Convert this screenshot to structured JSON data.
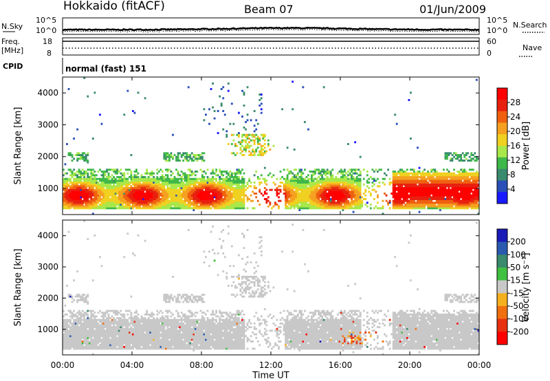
{
  "header": {
    "station": "Hokkaido (fitACF)",
    "beam": "Beam 07",
    "date": "01/Jun/2009"
  },
  "aux": {
    "nsky_label": "N.Sky",
    "nsky_ticks": [
      "10^5",
      "10^0"
    ],
    "nsearch_label": "N.Search",
    "freq_label": "Freq.",
    "freq_unit": "[MHz]",
    "freq_ticks": [
      "18",
      "8"
    ],
    "nave_label": "Nave",
    "nave_ticks": [
      "60",
      "0"
    ],
    "cpid_label": "CPID",
    "cpid_value": "normal (fast) 151"
  },
  "chart_data": [
    {
      "type": "heatmap",
      "panel": "power",
      "ylabel": "Slant Range [km]",
      "yticks": [
        1000,
        2000,
        3000,
        4000
      ],
      "ylim": [
        180,
        4500
      ],
      "xlim": [
        0,
        24
      ],
      "colorbar": {
        "label": "Power [dB]",
        "ticks": [
          4,
          8,
          12,
          16,
          20,
          24,
          28
        ],
        "colors": [
          "#1a1aff",
          "#2a4fb8",
          "#3a8a6e",
          "#3fb84a",
          "#a8e84a",
          "#f0d020",
          "#f5a020",
          "#f06010",
          "#e82010",
          "#ff0000"
        ]
      }
    },
    {
      "type": "heatmap",
      "panel": "velocity",
      "ylabel": "Slant Range [km]",
      "yticks": [
        1000,
        2000,
        3000,
        4000
      ],
      "ylim": [
        180,
        4500
      ],
      "xlim": [
        0,
        24
      ],
      "xlabel": "Time UT",
      "xticks": [
        "00:00",
        "04:00",
        "08:00",
        "12:00",
        "16:00",
        "20:00",
        "00:00"
      ],
      "colorbar": {
        "label": "Velocity [m s⁻¹]",
        "ticks": [
          200,
          100,
          50,
          15,
          -15,
          -50,
          -100,
          -200
        ],
        "colors": [
          "#1a1ab8",
          "#2a5ab0",
          "#3a8a6e",
          "#40c040",
          "#c8c8c8",
          "#f5b020",
          "#f07010",
          "#e83010",
          "#ff0000"
        ]
      }
    }
  ]
}
